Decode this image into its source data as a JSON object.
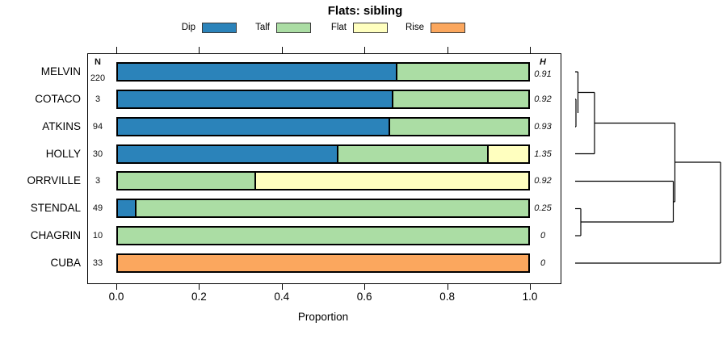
{
  "chart_data": {
    "type": "bar",
    "subtype": "horizontal-stacked-proportion-bars-with-cluster-dendrogram",
    "title": "Flats: sibling",
    "xlabel": "Proportion",
    "xlim": [
      0,
      1
    ],
    "xtick_labels": [
      "0.0",
      "0.2",
      "0.4",
      "0.6",
      "0.8",
      "1.0"
    ],
    "grid": false,
    "legend_position": "top",
    "n_header": "N",
    "h_header": "H",
    "legend": [
      {
        "label": "Dip",
        "color": "#2B83BA"
      },
      {
        "label": "Talf",
        "color": "#ABDDA4"
      },
      {
        "label": "Flat",
        "color": "#FFFFBF"
      },
      {
        "label": "Rise",
        "color": "#FBA75E"
      }
    ],
    "rows": [
      {
        "label": "MELVIN",
        "n": "220",
        "h": "0.91",
        "values": [
          0.677,
          0.323,
          0,
          0
        ]
      },
      {
        "label": "COTACO",
        "n": "3",
        "h": "0.92",
        "values": [
          0.667,
          0.333,
          0,
          0
        ]
      },
      {
        "label": "ATKINS",
        "n": "94",
        "h": "0.93",
        "values": [
          0.66,
          0.34,
          0,
          0
        ]
      },
      {
        "label": "HOLLY",
        "n": "30",
        "h": "1.35",
        "values": [
          0.533,
          0.367,
          0.1,
          0
        ]
      },
      {
        "label": "ORRVILLE",
        "n": "3",
        "h": "0.92",
        "values": [
          0,
          0.333,
          0.667,
          0
        ]
      },
      {
        "label": "STENDAL",
        "n": "49",
        "h": "0.25",
        "values": [
          0.041,
          0.959,
          0,
          0
        ]
      },
      {
        "label": "CHAGRIN",
        "n": "10",
        "h": "0",
        "values": [
          0,
          1,
          0,
          0
        ]
      },
      {
        "label": "CUBA",
        "n": "33",
        "h": "0",
        "values": [
          0,
          0,
          0,
          1
        ]
      }
    ],
    "dendrogram": {
      "clustering": "((((MELVIN,(COTACO,ATKINS)),HOLLY),(ORRVILLE,(STENDAL,CHAGRIN))),CUBA)",
      "segments": [
        [
          712,
          89,
          715.5,
          89
        ],
        [
          715.5,
          89,
          715.5,
          140
        ],
        [
          712,
          123,
          713,
          123
        ],
        [
          713,
          123,
          713,
          157
        ],
        [
          712,
          157,
          713,
          157
        ],
        [
          715.5,
          114.5,
          736,
          114.5
        ],
        [
          736,
          114.5,
          736,
          190.5
        ],
        [
          712,
          190.5,
          736,
          190.5
        ],
        [
          736,
          152.5,
          835.5,
          152.5
        ],
        [
          712,
          224.5,
          833.5,
          224.5
        ],
        [
          833.5,
          224.5,
          833.5,
          275
        ],
        [
          712,
          258.5,
          719,
          258.5
        ],
        [
          719,
          258.5,
          719,
          292
        ],
        [
          712,
          292,
          719,
          292
        ],
        [
          719,
          275,
          833.5,
          275
        ],
        [
          833.5,
          250,
          835.5,
          250
        ],
        [
          835.5,
          152.5,
          835.5,
          250
        ],
        [
          835.5,
          201,
          892,
          201
        ],
        [
          892,
          201,
          892,
          326
        ],
        [
          712,
          326,
          892,
          326
        ]
      ]
    }
  }
}
